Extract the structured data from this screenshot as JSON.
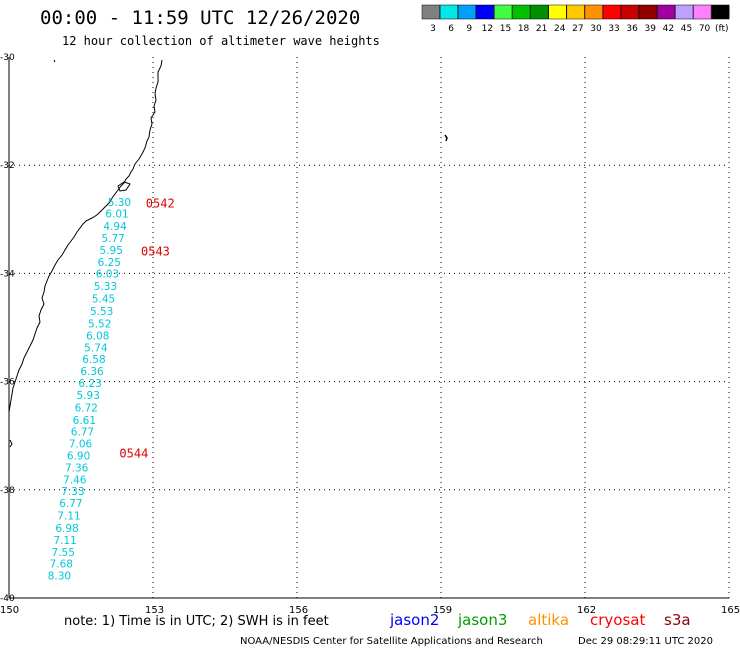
{
  "header": {
    "title": "00:00 - 11:59 UTC 12/26/2020",
    "subtitle": "12 hour collection of altimeter wave heights"
  },
  "scale": {
    "unit": "(ft)",
    "bins": [
      {
        "label": "3",
        "color": "#808080"
      },
      {
        "label": "6",
        "color": "#00e8e8"
      },
      {
        "label": "9",
        "color": "#00a0ff"
      },
      {
        "label": "12",
        "color": "#0000ff"
      },
      {
        "label": "15",
        "color": "#40ff40"
      },
      {
        "label": "18",
        "color": "#00c000"
      },
      {
        "label": "21",
        "color": "#009000"
      },
      {
        "label": "24",
        "color": "#ffff00"
      },
      {
        "label": "27",
        "color": "#ffc800"
      },
      {
        "label": "30",
        "color": "#ff9000"
      },
      {
        "label": "33",
        "color": "#ff0000"
      },
      {
        "label": "36",
        "color": "#c80000"
      },
      {
        "label": "39",
        "color": "#900000"
      },
      {
        "label": "42",
        "color": "#a000a0"
      },
      {
        "label": "45",
        "color": "#c0a0ff"
      },
      {
        "label": "70",
        "color": "#ff80ff"
      },
      {
        "label": "",
        "color": "#000000"
      }
    ]
  },
  "map": {
    "lon_range": [
      150,
      165
    ],
    "lat_range": [
      -30,
      -40
    ],
    "lon_ticks": [
      "150",
      "153",
      "156",
      "159",
      "162",
      "165"
    ],
    "lat_ticks": [
      "-30",
      "-32",
      "-34",
      "-36",
      "-38",
      "-40"
    ],
    "lat_tick_values": [
      -30,
      -32,
      -34,
      -36,
      -38,
      -40
    ]
  },
  "track": {
    "color": "#00c8d8",
    "points": [
      {
        "value": "5.30",
        "lat": -32.75,
        "lon": 152.3
      },
      {
        "value": "6.01",
        "lat": -32.97,
        "lon": 152.25
      },
      {
        "value": "4.94",
        "lat": -33.2,
        "lon": 152.21
      },
      {
        "value": "5.77",
        "lat": -33.42,
        "lon": 152.17
      },
      {
        "value": "5.95",
        "lat": -33.64,
        "lon": 152.13
      },
      {
        "value": "6.25",
        "lat": -33.86,
        "lon": 152.09
      },
      {
        "value": "6.03",
        "lat": -34.08,
        "lon": 152.05
      },
      {
        "value": "5.33",
        "lat": -34.31,
        "lon": 152.01
      },
      {
        "value": "5.45",
        "lat": -34.54,
        "lon": 151.97
      },
      {
        "value": "5.53",
        "lat": -34.77,
        "lon": 151.93
      },
      {
        "value": "5.52",
        "lat": -35.0,
        "lon": 151.89
      },
      {
        "value": "6.08",
        "lat": -35.22,
        "lon": 151.85
      },
      {
        "value": "5.74",
        "lat": -35.44,
        "lon": 151.81
      },
      {
        "value": "6.58",
        "lat": -35.66,
        "lon": 151.77
      },
      {
        "value": "6.36",
        "lat": -35.88,
        "lon": 151.73
      },
      {
        "value": "6.23",
        "lat": -36.1,
        "lon": 151.69
      },
      {
        "value": "5.93",
        "lat": -36.32,
        "lon": 151.65
      },
      {
        "value": "6.72",
        "lat": -36.55,
        "lon": 151.61
      },
      {
        "value": "6.61",
        "lat": -36.78,
        "lon": 151.57
      },
      {
        "value": "6.77",
        "lat": -37.0,
        "lon": 151.53
      },
      {
        "value": "7.06",
        "lat": -37.22,
        "lon": 151.49
      },
      {
        "value": "6.90",
        "lat": -37.44,
        "lon": 151.45
      },
      {
        "value": "7.36",
        "lat": -37.66,
        "lon": 151.41
      },
      {
        "value": "7.46",
        "lat": -37.88,
        "lon": 151.37
      },
      {
        "value": "7.33",
        "lat": -38.1,
        "lon": 151.33
      },
      {
        "value": "6.77",
        "lat": -38.32,
        "lon": 151.29
      },
      {
        "value": "7.11",
        "lat": -38.55,
        "lon": 151.25
      },
      {
        "value": "6.98",
        "lat": -38.78,
        "lon": 151.21
      },
      {
        "value": "7.11",
        "lat": -39.0,
        "lon": 151.17
      },
      {
        "value": "7.55",
        "lat": -39.22,
        "lon": 151.13
      },
      {
        "value": "7.68",
        "lat": -39.44,
        "lon": 151.09
      },
      {
        "value": "8.30",
        "lat": -39.66,
        "lon": 151.05
      }
    ]
  },
  "time_labels": [
    {
      "text": "0542",
      "lat": -32.78,
      "lon": 152.85
    },
    {
      "text": "0543",
      "lat": -33.67,
      "lon": 152.75
    },
    {
      "text": "0544",
      "lat": -37.4,
      "lon": 152.3
    }
  ],
  "time_label_color": "#e00000",
  "footer": {
    "note": "note: 1) Time is in UTC; 2) SWH is in feet",
    "credit": "NOAA/NESDIS Center for Satellite Applications and Research",
    "timestamp": "Dec 29 08:29:11 UTC 2020"
  },
  "satellites": [
    {
      "name": "jason2",
      "color": "#0000ff"
    },
    {
      "name": "jason3",
      "color": "#00a000"
    },
    {
      "name": "altika",
      "color": "#ff9000"
    },
    {
      "name": "cryosat",
      "color": "#ff0000"
    },
    {
      "name": "s3a",
      "color": "#900000"
    }
  ]
}
